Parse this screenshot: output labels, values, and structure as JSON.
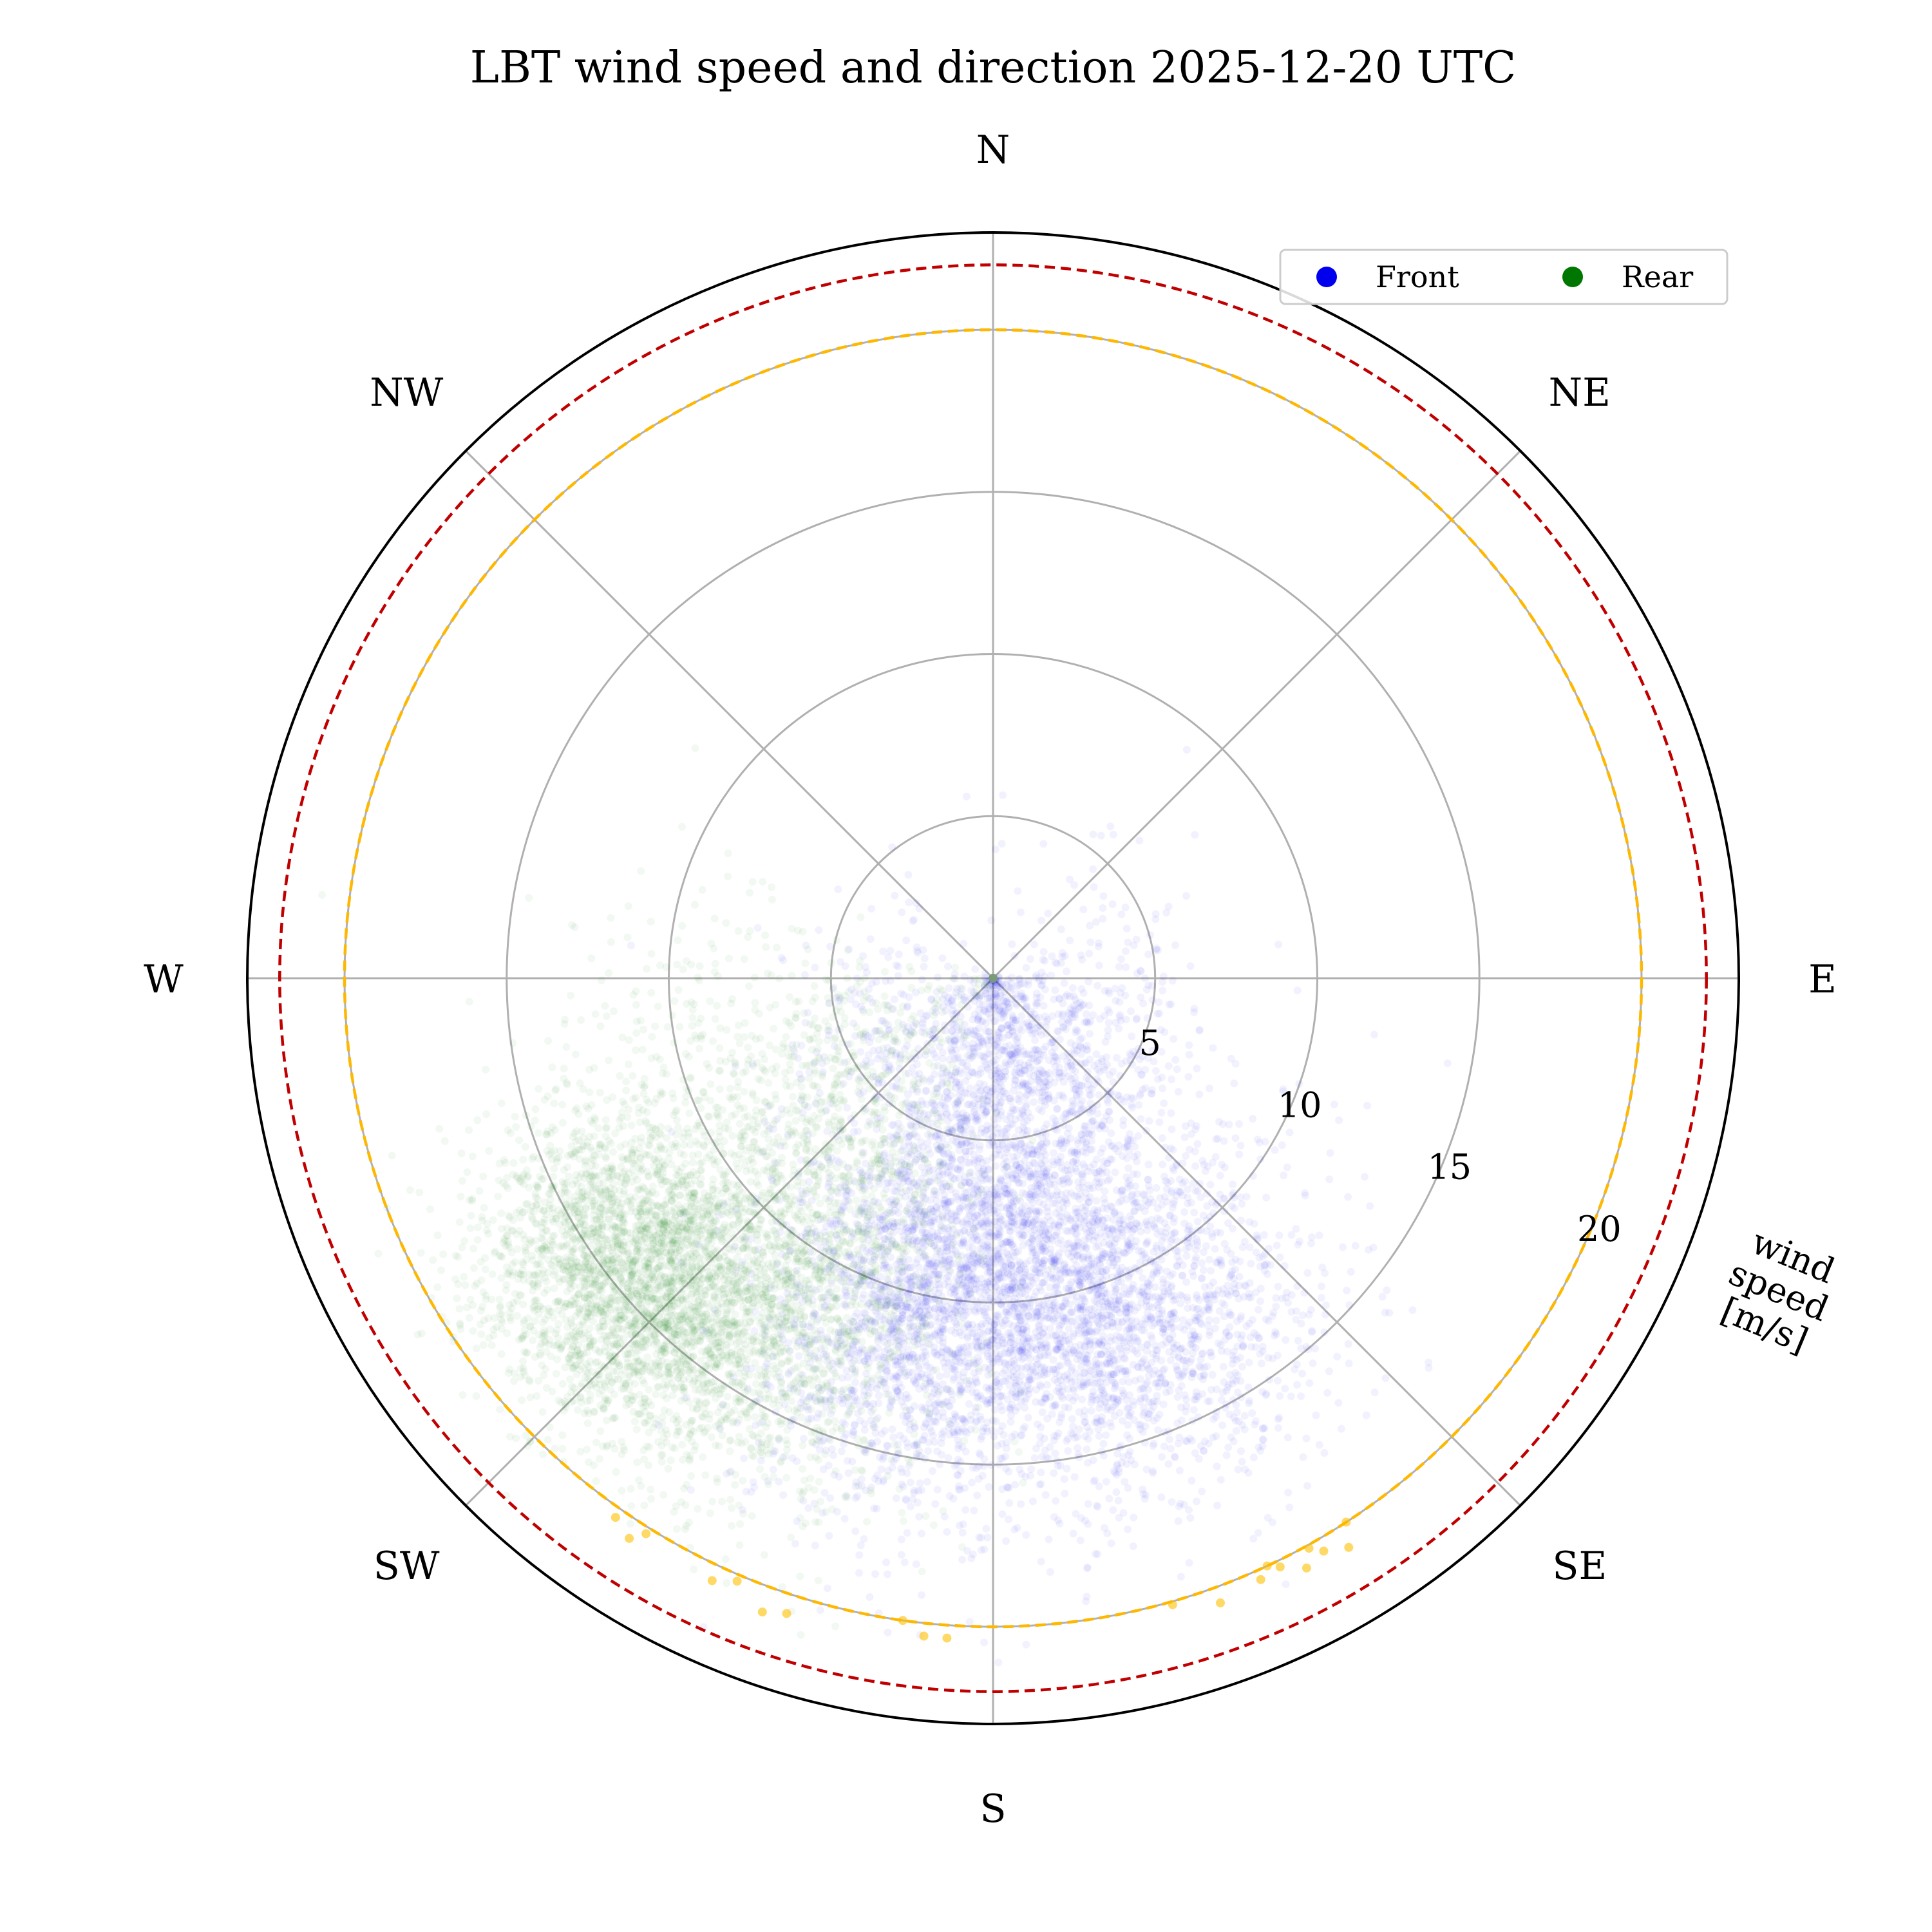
{
  "chart_data": {
    "type": "scatter",
    "projection": "polar",
    "title": "LBT wind speed and direction 2025-12-20 UTC",
    "theta_zero": "N",
    "theta_direction": "clockwise",
    "direction_labels": [
      {
        "label": "N",
        "deg": 0
      },
      {
        "label": "NE",
        "deg": 45
      },
      {
        "label": "E",
        "deg": 90
      },
      {
        "label": "SE",
        "deg": 135
      },
      {
        "label": "S",
        "deg": 180
      },
      {
        "label": "SW",
        "deg": 225
      },
      {
        "label": "W",
        "deg": 270
      },
      {
        "label": "NW",
        "deg": 315
      }
    ],
    "radial_axis": {
      "label_lines": [
        "wind",
        "speed",
        "[m/s]"
      ],
      "rlim": [
        0,
        23
      ],
      "ticks": [
        5,
        10,
        15,
        20
      ],
      "tick_labels": [
        "5",
        "10",
        "15",
        "20"
      ],
      "label_angle_deg": 112.5
    },
    "grid": true,
    "legend": {
      "position": "top-right",
      "entries": [
        {
          "name": "Front",
          "color": "#0000ee"
        },
        {
          "name": "Rear",
          "color": "#007700"
        }
      ]
    },
    "reference_circles": [
      {
        "speed": 20,
        "color": "#ffb800",
        "style": "dashed"
      },
      {
        "speed": 22,
        "color": "#c00000",
        "style": "dashed"
      }
    ],
    "series": [
      {
        "name": "Front",
        "color": "#0000ee",
        "opacity": 0.05,
        "clusters": [
          {
            "dir_deg": 175,
            "dir_spread": 22,
            "speed_mean": 9,
            "speed_sd": 2.5,
            "n": 2600
          },
          {
            "dir_deg": 160,
            "dir_spread": 14,
            "speed_mean": 12.5,
            "speed_sd": 2.5,
            "n": 1300
          },
          {
            "dir_deg": 192,
            "dir_spread": 10,
            "speed_mean": 12,
            "speed_sd": 3,
            "n": 1000
          },
          {
            "dir_deg": 170,
            "dir_spread": 55,
            "speed_mean": 3.5,
            "speed_sd": 1.8,
            "n": 1300
          }
        ]
      },
      {
        "name": "Rear",
        "color": "#007700",
        "opacity": 0.05,
        "clusters": [
          {
            "dir_deg": 230,
            "dir_spread": 10,
            "speed_mean": 14.5,
            "speed_sd": 2.3,
            "n": 3000
          },
          {
            "dir_deg": 210,
            "dir_spread": 11,
            "speed_mean": 12,
            "speed_sd": 3,
            "n": 1300
          },
          {
            "dir_deg": 235,
            "dir_spread": 22,
            "speed_mean": 8,
            "speed_sd": 3,
            "n": 1000
          }
        ]
      },
      {
        "name": "",
        "color": "#ffc000",
        "opacity": 0.6,
        "points": [
          [
            215,
            20.3
          ],
          [
            213,
            20.6
          ],
          [
            212,
            20.2
          ],
          [
            205,
            20.5
          ],
          [
            203,
            20.2
          ],
          [
            200,
            20.8
          ],
          [
            198,
            20.6
          ],
          [
            188,
            20.0
          ],
          [
            186,
            20.4
          ],
          [
            184,
            20.4
          ],
          [
            164,
            20.1
          ],
          [
            160,
            20.5
          ],
          [
            156,
            20.3
          ],
          [
            155,
            20.0
          ],
          [
            154,
            20.2
          ],
          [
            152,
            20.6
          ],
          [
            151,
            20.1
          ],
          [
            150,
            20.4
          ],
          [
            148,
            20.7
          ],
          [
            147,
            20.0
          ]
        ]
      }
    ]
  }
}
